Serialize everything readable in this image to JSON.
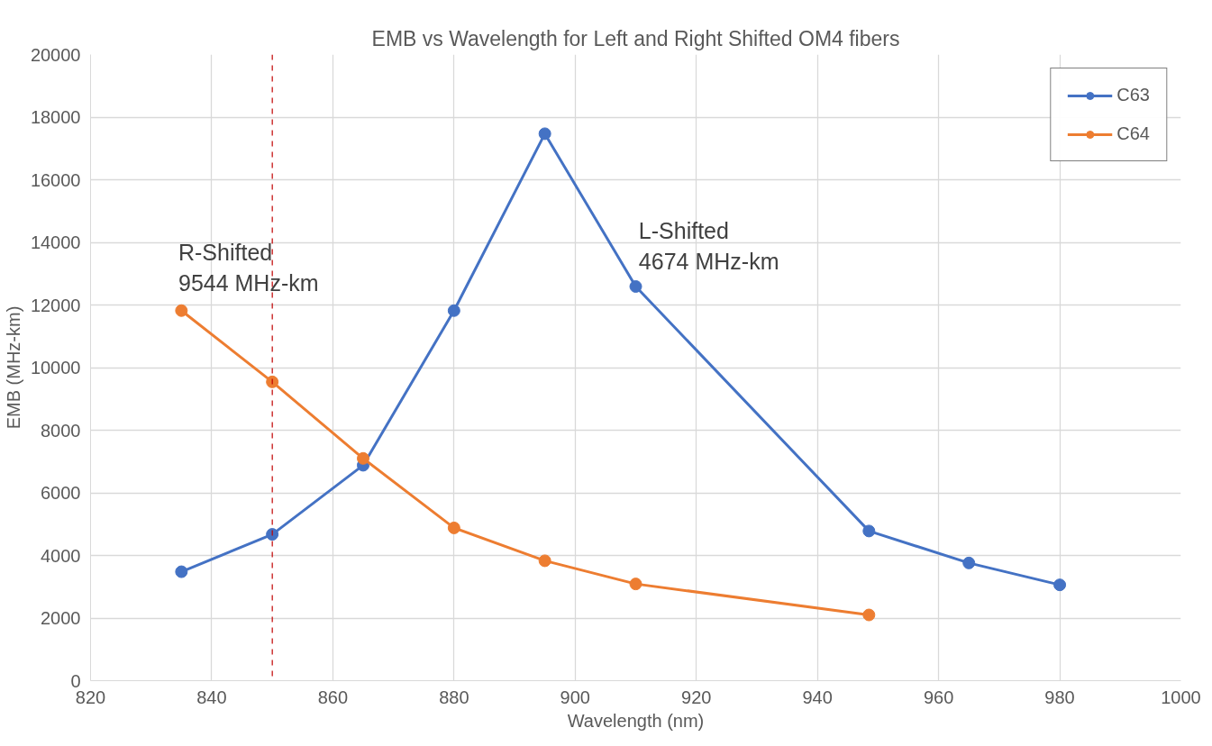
{
  "chart_data": {
    "type": "line",
    "title": "EMB vs Wavelength for Left and Right Shifted OM4 fibers",
    "xlabel": "Wavelength (nm)",
    "ylabel": "EMB (MHz-km)",
    "xlim": [
      820,
      1000
    ],
    "xticks": [
      820,
      840,
      860,
      880,
      900,
      920,
      940,
      960,
      980,
      1000
    ],
    "ylim": [
      0,
      20000
    ],
    "yticks": [
      0,
      2000,
      4000,
      6000,
      8000,
      10000,
      12000,
      14000,
      16000,
      18000,
      20000
    ],
    "series": [
      {
        "name": "C63",
        "color": "#4472c4",
        "x": [
          835,
          850,
          865,
          880,
          895,
          910,
          948.5,
          965,
          980
        ],
        "values": [
          3480,
          4674,
          6880,
          11820,
          17470,
          12590,
          4780,
          3760,
          3060
        ]
      },
      {
        "name": "C64",
        "color": "#ed7d31",
        "x": [
          835,
          850,
          865,
          880,
          895,
          910,
          948.5
        ],
        "values": [
          11820,
          9544,
          7100,
          4880,
          3830,
          3090,
          2100
        ]
      }
    ],
    "ref_lines": [
      {
        "axis": "x",
        "value": 850,
        "color": "#c00000",
        "line_style": "dashed"
      }
    ],
    "annotations": [
      "R-Shifted\n9544 MHz-km",
      "L-Shifted\n4674 MHz-km"
    ],
    "grid": true,
    "legend": "top right",
    "marker": "circle",
    "line_style": "solid"
  }
}
